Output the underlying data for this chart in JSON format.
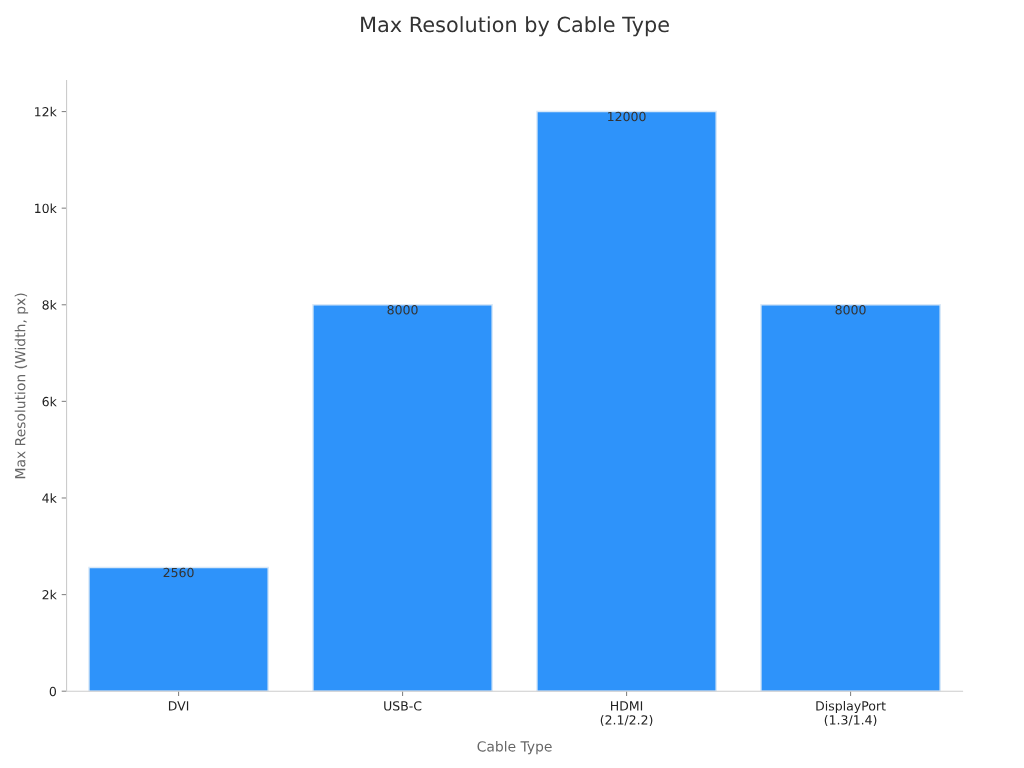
{
  "chart_data": {
    "type": "bar",
    "title": "Max Resolution by Cable Type",
    "xlabel": "Cable Type",
    "ylabel": "Max Resolution (Width, px)",
    "categories": [
      "DVI",
      "USB-C",
      "HDMI\n(2.1/2.2)",
      "DisplayPort\n(1.3/1.4)"
    ],
    "values": [
      2560,
      8000,
      12000,
      8000
    ],
    "color": "#2e93fa",
    "ylim": [
      0,
      12640
    ],
    "yticks": [
      0,
      {
        "value": 2000,
        "label": "2k"
      },
      {
        "value": 4000,
        "label": "4k"
      },
      {
        "value": 6000,
        "label": "6k"
      },
      {
        "value": 8000,
        "label": "8k"
      },
      {
        "value": 10000,
        "label": "10k"
      },
      {
        "value": 12000,
        "label": "12k"
      }
    ],
    "data_labels": true,
    "grid": false,
    "legend": false
  }
}
